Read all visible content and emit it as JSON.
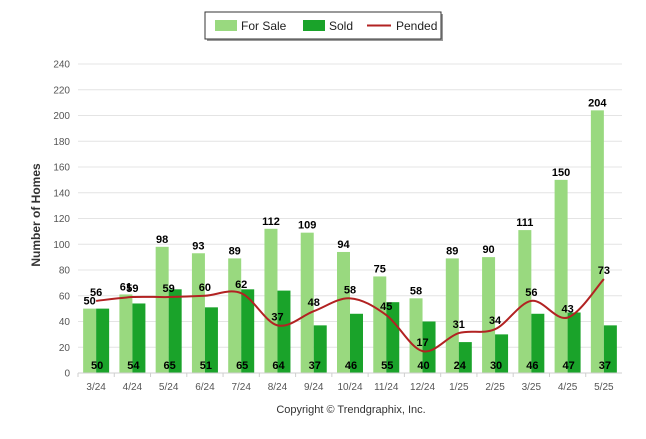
{
  "chart_data": {
    "type": "bar",
    "ylabel": "Number of Homes",
    "ylim": [
      0,
      240
    ],
    "yticks": [
      0,
      20,
      40,
      60,
      80,
      100,
      120,
      140,
      160,
      180,
      200,
      220,
      240
    ],
    "grid": true,
    "legend_position": "top-center",
    "categories": [
      "3/24",
      "4/24",
      "5/24",
      "6/24",
      "7/24",
      "8/24",
      "9/24",
      "10/24",
      "11/24",
      "12/24",
      "1/25",
      "2/25",
      "3/25",
      "4/25",
      "5/25"
    ],
    "series": [
      {
        "name": "For Sale",
        "kind": "bar",
        "color": "#99d97f",
        "values": [
          50,
          61,
          98,
          93,
          89,
          112,
          109,
          94,
          75,
          58,
          89,
          90,
          111,
          150,
          204
        ]
      },
      {
        "name": "Sold",
        "kind": "bar",
        "color": "#1aa32a",
        "values": [
          50,
          54,
          65,
          51,
          65,
          64,
          37,
          46,
          55,
          40,
          24,
          30,
          46,
          47,
          37
        ]
      },
      {
        "name": "Pended",
        "kind": "line",
        "color": "#b22222",
        "values": [
          56,
          59,
          59,
          60,
          62,
          37,
          48,
          58,
          45,
          17,
          31,
          34,
          56,
          43,
          73
        ]
      }
    ]
  },
  "footer": {
    "copyright": "Copyright © Trendgraphix, Inc."
  }
}
